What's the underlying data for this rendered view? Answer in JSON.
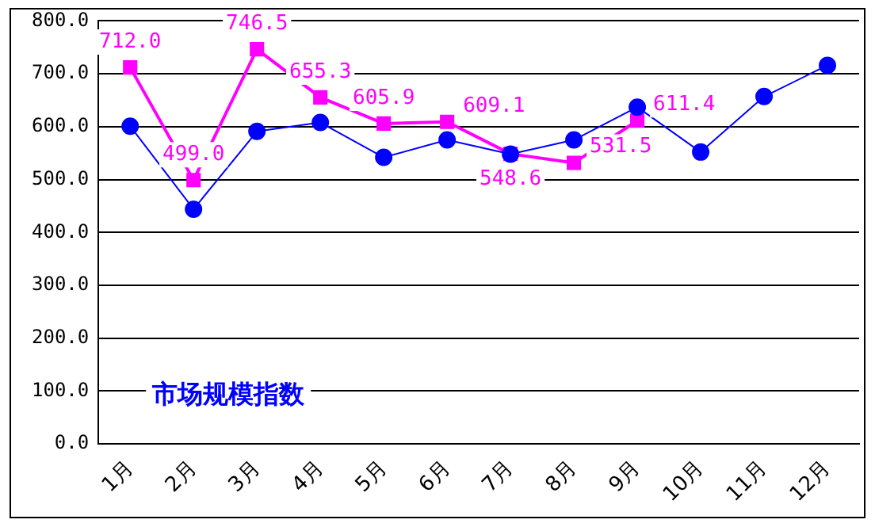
{
  "chart_data": {
    "type": "line",
    "categories": [
      "1月",
      "2月",
      "3月",
      "4月",
      "5月",
      "6月",
      "7月",
      "8月",
      "9月",
      "10月",
      "11月",
      "12月"
    ],
    "series": [
      {
        "color": "#0000ff",
        "marker": "circle",
        "values": [
          601,
          444,
          591,
          608,
          542,
          575,
          548,
          575,
          637,
          552,
          657,
          716
        ]
      },
      {
        "color": "#ff00ff",
        "marker": "square",
        "values": [
          712.0,
          499.0,
          746.5,
          655.3,
          605.9,
          609.1,
          548.6,
          531.5,
          611.4,
          null,
          null,
          null
        ],
        "value_labels": [
          "712.0",
          "499.0",
          "746.5",
          "655.3",
          "605.9",
          "609.1",
          "548.6",
          "531.5",
          "611.4",
          null,
          null,
          null
        ]
      }
    ],
    "ylim": [
      0,
      800
    ],
    "yticks": [
      {
        "value": 0,
        "label": "0.0"
      },
      {
        "value": 100,
        "label": "100.0"
      },
      {
        "value": 200,
        "label": "200.0"
      },
      {
        "value": 300,
        "label": "300.0"
      },
      {
        "value": 400,
        "label": "400.0"
      },
      {
        "value": 500,
        "label": "500.0"
      },
      {
        "value": 600,
        "label": "600.0"
      },
      {
        "value": 700,
        "label": "700.0"
      },
      {
        "value": 800,
        "label": "800.0"
      }
    ],
    "grid": "y",
    "legend": false,
    "annotations": [
      "市场规模指数"
    ]
  }
}
